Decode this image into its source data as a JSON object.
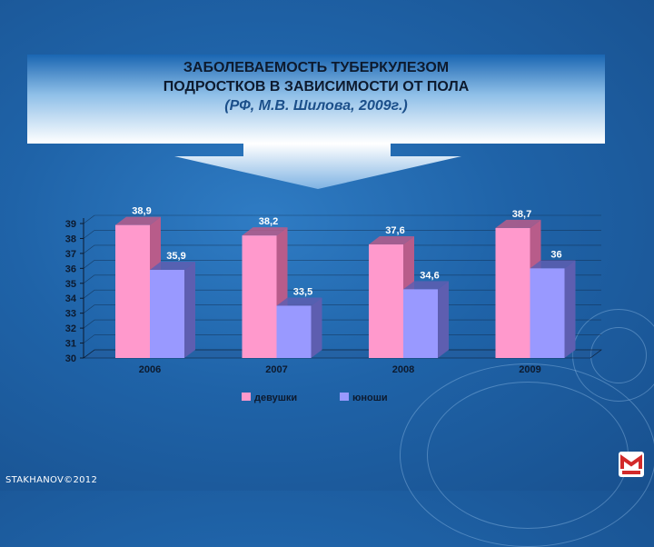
{
  "title": {
    "line1": "ЗАБОЛЕВАЕМОСТЬ ТУБЕРКУЛЕЗОМ",
    "line2": "ПОДРОСТКОВ  В ЗАВИСИМОСТИ ОТ ПОЛА",
    "line3": "(РФ, М.В. Шилова, 2009г.)"
  },
  "footer": "STAKHANOV©2012",
  "colors": {
    "girls": "#ff99cc",
    "girls_side": "#b85c8a",
    "boys": "#9999ff",
    "boys_side": "#5e5eb0",
    "label": "#ffffff",
    "axis": "#0d1a2e"
  },
  "chart_data": {
    "type": "bar",
    "categories": [
      "2006",
      "2007",
      "2008",
      "2009"
    ],
    "series": [
      {
        "name": "девушки",
        "values": [
          38.9,
          38.2,
          37.6,
          38.7
        ],
        "labels": [
          "38,9",
          "38,2",
          "37,6",
          "38,7"
        ]
      },
      {
        "name": "юноши",
        "values": [
          35.9,
          33.5,
          34.6,
          36
        ],
        "labels": [
          "35,9",
          "33,5",
          "34,6",
          "36"
        ]
      }
    ],
    "ylim": [
      30,
      39
    ],
    "yticks": [
      "30",
      "31",
      "32",
      "33",
      "34",
      "35",
      "36",
      "37",
      "38",
      "39"
    ],
    "grid": true,
    "style": "3d",
    "legend_position": "bottom"
  }
}
